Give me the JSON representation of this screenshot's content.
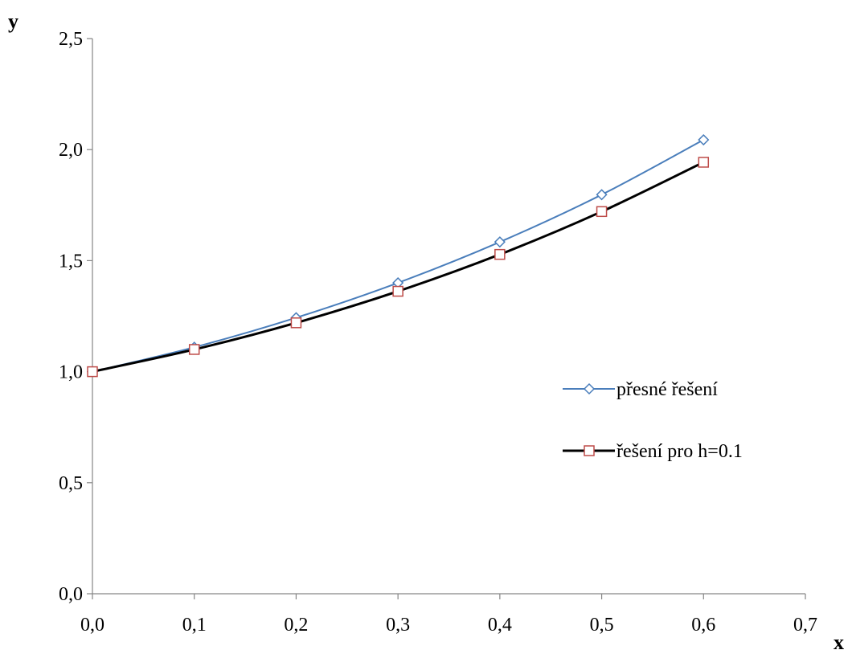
{
  "chart_data": {
    "type": "line",
    "xlabel": "x",
    "ylabel": "y",
    "xlim": [
      0,
      0.7
    ],
    "ylim": [
      0,
      2.5
    ],
    "x_ticks": [
      "0,0",
      "0,1",
      "0,2",
      "0,3",
      "0,4",
      "0,5",
      "0,6",
      "0,7"
    ],
    "y_ticks": [
      "0,0",
      "0,5",
      "1,0",
      "1,5",
      "2,0",
      "2,5"
    ],
    "grid": false,
    "legend_position": "right",
    "x": [
      0.0,
      0.1,
      0.2,
      0.3,
      0.4,
      0.5,
      0.6
    ],
    "series": [
      {
        "name": "přesné řešení",
        "values": [
          1.0,
          1.11,
          1.243,
          1.4,
          1.584,
          1.797,
          2.044
        ],
        "color": "#4a7ebb",
        "marker": "diamond"
      },
      {
        "name": "řešení pro h=0.1",
        "values": [
          1.0,
          1.1,
          1.22,
          1.362,
          1.528,
          1.721,
          1.943
        ],
        "color": "#000000",
        "marker": "square",
        "marker_color": "#be4b48"
      }
    ]
  }
}
